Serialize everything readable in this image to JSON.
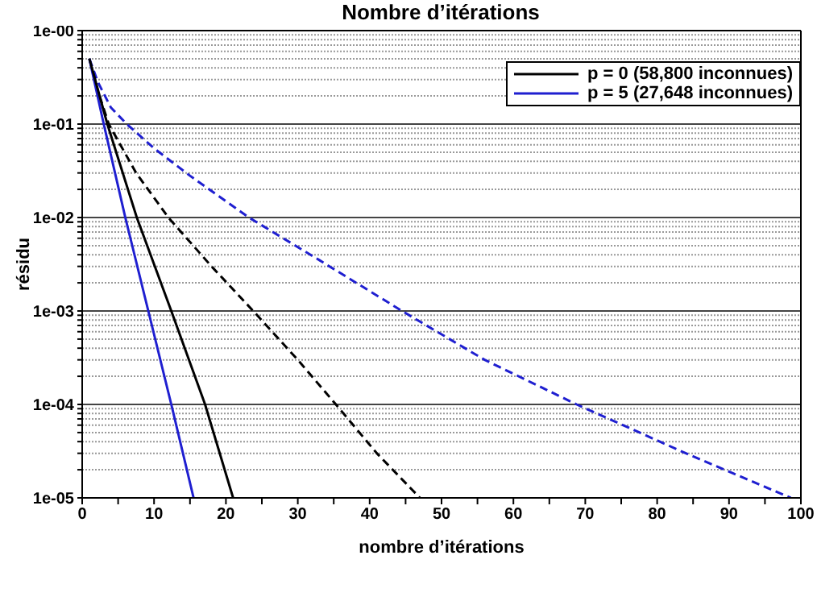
{
  "chart_data": {
    "type": "line",
    "title": "Nombre d’itérations",
    "xlabel": "nombre d’itérations",
    "ylabel": "résidu",
    "log": "y",
    "grid": "y",
    "legend": "top right",
    "marker": "none",
    "xlim": [
      0,
      100
    ],
    "xticks": [
      0,
      {
        "value": 5,
        "label": null
      },
      10,
      {
        "value": 15,
        "label": null
      },
      20,
      {
        "value": 25,
        "label": null
      },
      30,
      {
        "value": 35,
        "label": null
      },
      40,
      {
        "value": 45,
        "label": null
      },
      50,
      {
        "value": 55,
        "label": null
      },
      60,
      {
        "value": 65,
        "label": null
      },
      70,
      {
        "value": 75,
        "label": null
      },
      80,
      {
        "value": 85,
        "label": null
      },
      90,
      {
        "value": 95,
        "label": null
      },
      100
    ],
    "ylim": [
      1e-05,
      1
    ],
    "yticks": [
      {
        "value": 1e-05,
        "label": "1e-05"
      },
      {
        "value": 2e-05,
        "label": null
      },
      {
        "value": 3e-05,
        "label": null
      },
      {
        "value": 4e-05,
        "label": null
      },
      {
        "value": 5e-05,
        "label": null
      },
      {
        "value": 6e-05,
        "label": null
      },
      {
        "value": 7e-05,
        "label": null
      },
      {
        "value": 8e-05,
        "label": null
      },
      {
        "value": 9e-05,
        "label": null
      },
      {
        "value": 0.0001,
        "label": "1e-04"
      },
      {
        "value": 0.0002,
        "label": null
      },
      {
        "value": 0.0003,
        "label": null
      },
      {
        "value": 0.0004,
        "label": null
      },
      {
        "value": 0.0005,
        "label": null
      },
      {
        "value": 0.0006,
        "label": null
      },
      {
        "value": 0.0007,
        "label": null
      },
      {
        "value": 0.0008,
        "label": null
      },
      {
        "value": 0.0009,
        "label": null
      },
      {
        "value": 0.001,
        "label": "1e-03"
      },
      {
        "value": 0.002,
        "label": null
      },
      {
        "value": 0.003,
        "label": null
      },
      {
        "value": 0.004,
        "label": null
      },
      {
        "value": 0.005,
        "label": null
      },
      {
        "value": 0.006,
        "label": null
      },
      {
        "value": 0.007,
        "label": null
      },
      {
        "value": 0.008,
        "label": null
      },
      {
        "value": 0.009,
        "label": null
      },
      {
        "value": 0.01,
        "label": "1e-02"
      },
      {
        "value": 0.02,
        "label": null
      },
      {
        "value": 0.03,
        "label": null
      },
      {
        "value": 0.04,
        "label": null
      },
      {
        "value": 0.05,
        "label": null
      },
      {
        "value": 0.06,
        "label": null
      },
      {
        "value": 0.07,
        "label": null
      },
      {
        "value": 0.08,
        "label": null
      },
      {
        "value": 0.09,
        "label": null
      },
      {
        "value": 0.1,
        "label": "1e-01"
      },
      {
        "value": 0.2,
        "label": null
      },
      {
        "value": 0.3,
        "label": null
      },
      {
        "value": 0.4,
        "label": null
      },
      {
        "value": 0.5,
        "label": null
      },
      {
        "value": 0.6,
        "label": null
      },
      {
        "value": 0.7,
        "label": null
      },
      {
        "value": 0.8,
        "label": null
      },
      {
        "value": 0.9,
        "label": null
      },
      {
        "value": 1,
        "label": "1e-00"
      }
    ],
    "series": [
      {
        "name": "p = 0 (58,800 inconnues)",
        "color": "#000000",
        "line_style": "solid",
        "x": [
          1,
          3.5,
          7.6,
          12.4,
          17.1,
          21
        ],
        "values": [
          0.5,
          0.1,
          0.01,
          0.001,
          0.0001,
          1e-05
        ]
      },
      {
        "name": "p = 5 (27,648 inconnues)",
        "color": "#1f1fd0",
        "line_style": "solid",
        "x": [
          1,
          3,
          6,
          9.2,
          12.4,
          15.5
        ],
        "values": [
          0.5,
          0.1,
          0.01,
          0.001,
          0.0001,
          1e-05
        ]
      },
      {
        "color": "#000000",
        "line_style": "dashed",
        "x": [
          1,
          2,
          3.7,
          7.5,
          12,
          18,
          23.8,
          30,
          35.3,
          41,
          47
        ],
        "values": [
          0.5,
          0.25,
          0.1,
          0.03,
          0.01,
          0.003,
          0.001,
          0.0003,
          0.0001,
          3e-05,
          1e-05
        ]
      },
      {
        "color": "#1f1fd0",
        "line_style": "dashed",
        "x": [
          1,
          2.2,
          4,
          6.2,
          10,
          15,
          23.2,
          33,
          44.5,
          56,
          68.8,
          84,
          98.6
        ],
        "values": [
          0.5,
          0.28,
          0.15,
          0.1,
          0.055,
          0.028,
          0.01,
          0.0035,
          0.001,
          0.0003,
          0.0001,
          3e-05,
          1e-05
        ]
      }
    ]
  }
}
